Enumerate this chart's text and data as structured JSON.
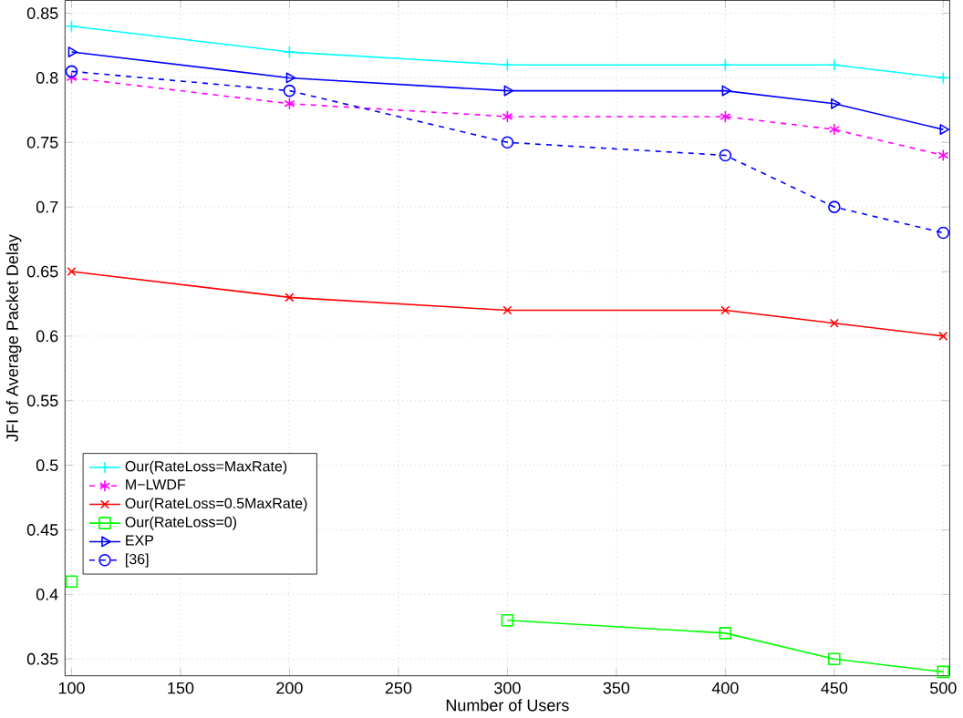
{
  "chart_data": {
    "type": "line",
    "xlabel": "Number of Users",
    "ylabel": "JFI of Average Packet Delay",
    "x": [
      100,
      200,
      300,
      400,
      450,
      500
    ],
    "xlim": [
      97,
      503
    ],
    "ylim": [
      0.337,
      0.86
    ],
    "xticks": [
      100,
      150,
      200,
      250,
      300,
      350,
      400,
      450,
      500
    ],
    "yticks": [
      0.35,
      0.4,
      0.45,
      0.5,
      0.55,
      0.6,
      0.65,
      0.7,
      0.75,
      0.8,
      0.85
    ],
    "grid": true,
    "legend": "left",
    "series": [
      {
        "name": "Our(RateLoss=MaxRate)",
        "color": "#00ffff",
        "marker": "plus",
        "line_style": "solid",
        "values": [
          0.84,
          0.82,
          0.81,
          0.81,
          0.81,
          0.8
        ]
      },
      {
        "name": "M−LWDF",
        "color": "#ff00ff",
        "marker": "cross",
        "line_style": "dashed",
        "values": [
          0.8,
          0.78,
          0.77,
          0.77,
          0.76,
          0.74
        ]
      },
      {
        "name": "Our(RateLoss=0.5MaxRate)",
        "color": "#ff0000",
        "marker": "cross",
        "line_style": "solid",
        "values": [
          0.65,
          0.63,
          0.62,
          0.62,
          0.61,
          0.6
        ]
      },
      {
        "name": "Our(RateLoss=0)",
        "color": "#00ff00",
        "marker": "square",
        "line_style": "solid",
        "values": [
          0.41,
          null,
          0.38,
          0.37,
          0.35,
          0.34
        ]
      },
      {
        "name": "EXP",
        "color": "#0000ff",
        "marker": "triangle",
        "line_style": "solid",
        "values": [
          0.82,
          0.8,
          0.79,
          0.79,
          0.78,
          0.76
        ]
      },
      {
        "name": "[36]",
        "color": "#0000ff",
        "marker": "circle",
        "line_style": "dashed",
        "values": [
          0.805,
          0.79,
          0.75,
          0.74,
          0.7,
          0.68
        ]
      }
    ]
  }
}
